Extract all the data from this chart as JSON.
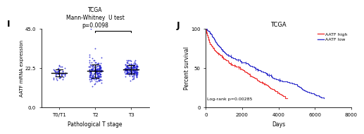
{
  "panel_I": {
    "title": "TCGA\nMann-Whitney  U test\np=0.0098",
    "xlabel": "Pathological T stage",
    "ylabel": "AATF mRNA expression",
    "categories": [
      "T0/T1",
      "T2",
      "T3"
    ],
    "ylim": [
      0.0,
      45.0
    ],
    "yticks": [
      0.0,
      22.5,
      45.0
    ],
    "dot_color": "#1010CC",
    "groups": {
      "T0/T1": {
        "n": 55,
        "mean": 20.0,
        "std": 2.2
      },
      "T2": {
        "n": 180,
        "mean": 20.3,
        "std": 3.8
      },
      "T3": {
        "n": 170,
        "mean": 21.3,
        "std": 2.5
      }
    },
    "bracket_x1": 1,
    "bracket_x2": 2,
    "bracket_y": 43.5,
    "panel_label": "I"
  },
  "panel_J": {
    "title": "TCGA",
    "xlabel": "Days",
    "ylabel": "Percent survival",
    "xlim": [
      0,
      8000
    ],
    "xticks": [
      0,
      2000,
      4000,
      6000,
      8000
    ],
    "ylim": [
      0,
      100
    ],
    "yticks": [
      0,
      50,
      100
    ],
    "logrank_text": "Log-rank p=0.00285",
    "high_color": "#EE3333",
    "low_color": "#3333CC",
    "legend_high": "AATF high",
    "legend_low": "AATF low",
    "panel_label": "J"
  }
}
